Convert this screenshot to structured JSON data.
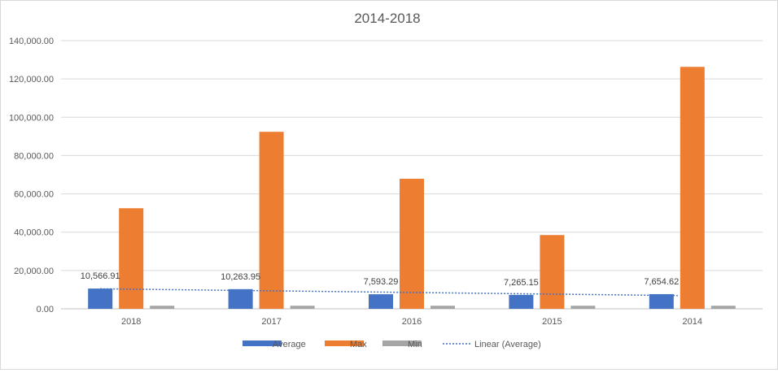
{
  "chart_data": {
    "type": "bar",
    "title": "2014-2018",
    "categories": [
      "2018",
      "2017",
      "2016",
      "2015",
      "2014"
    ],
    "series": [
      {
        "name": "Average",
        "color": "#4472c4",
        "values": [
          10566.91,
          10263.95,
          7593.29,
          7265.15,
          7654.62
        ]
      },
      {
        "name": "Max",
        "color": "#ed7d31",
        "values": [
          52500,
          92400,
          67900,
          38500,
          126300
        ]
      },
      {
        "name": "Min",
        "color": "#a5a5a5",
        "values": [
          1600,
          1600,
          1600,
          1600,
          1600
        ]
      }
    ],
    "data_labels": [
      "10,566.91",
      "10,263.95",
      "7,593.29",
      "7,265.15",
      "7,654.62"
    ],
    "trendline": {
      "name": "Linear (Average)",
      "color": "#4472c4",
      "style": "dotted",
      "of_series": "Average"
    },
    "yticks": [
      "0.00",
      "20,000.00",
      "40,000.00",
      "60,000.00",
      "80,000.00",
      "100,000.00",
      "120,000.00",
      "140,000.00"
    ],
    "ylim": [
      0,
      140000
    ],
    "grid": true,
    "legend": "bottom",
    "xlabel": "",
    "ylabel": ""
  }
}
